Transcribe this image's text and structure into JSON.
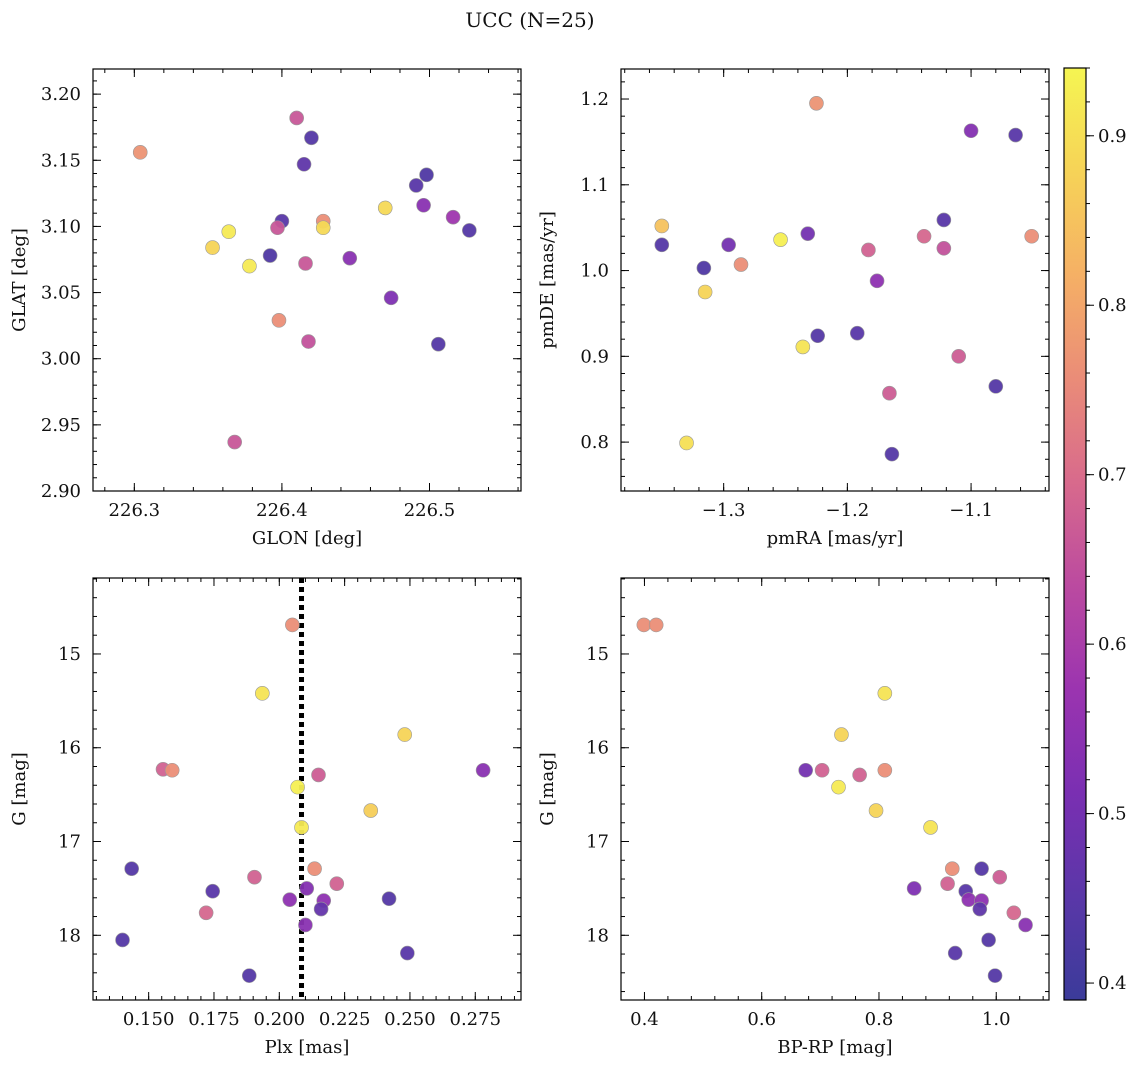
{
  "figure": {
    "title": "UCC (N=25)"
  },
  "colorbar": {
    "vmin": 0.39,
    "vmax": 0.94,
    "ticks": [
      0.4,
      0.5,
      0.6,
      0.7,
      0.8,
      0.9
    ],
    "tick_labels": [
      "0.4",
      "0.5",
      "0.6",
      "0.7",
      "0.8",
      "0.9"
    ],
    "colormap": "plasma",
    "stops": [
      "#3b3b9a",
      "#5a37a8",
      "#7a2fb2",
      "#9b34b0",
      "#bb4aa0",
      "#d86a8c",
      "#ea8c78",
      "#f5b065",
      "#f6d357",
      "#f5f552"
    ]
  },
  "chart_data": [
    {
      "type": "scatter",
      "title": "",
      "xlabel": "GLON [deg]",
      "ylabel": "GLAT [deg]",
      "xlim": [
        226.272,
        226.562
      ],
      "ylim": [
        2.9,
        3.219
      ],
      "xticks": [
        226.3,
        226.4,
        226.5
      ],
      "xtick_labels": [
        "226.3",
        "226.4",
        "226.5"
      ],
      "yticks": [
        2.9,
        2.95,
        3.0,
        3.05,
        3.1,
        3.15,
        3.2
      ],
      "ytick_labels": [
        "2.90",
        "2.95",
        "3.00",
        "3.05",
        "3.10",
        "3.15",
        "3.20"
      ],
      "invert_y": false,
      "points": [
        {
          "x": 226.304,
          "y": 3.156,
          "c": 0.77
        },
        {
          "x": 226.41,
          "y": 3.182,
          "c": 0.66
        },
        {
          "x": 226.42,
          "y": 3.167,
          "c": 0.44
        },
        {
          "x": 226.415,
          "y": 3.147,
          "c": 0.46
        },
        {
          "x": 226.498,
          "y": 3.139,
          "c": 0.43
        },
        {
          "x": 226.491,
          "y": 3.131,
          "c": 0.45
        },
        {
          "x": 226.47,
          "y": 3.114,
          "c": 0.89
        },
        {
          "x": 226.496,
          "y": 3.116,
          "c": 0.54
        },
        {
          "x": 226.516,
          "y": 3.107,
          "c": 0.58
        },
        {
          "x": 226.527,
          "y": 3.097,
          "c": 0.44
        },
        {
          "x": 226.4,
          "y": 3.104,
          "c": 0.45
        },
        {
          "x": 226.428,
          "y": 3.104,
          "c": 0.76
        },
        {
          "x": 226.428,
          "y": 3.099,
          "c": 0.89
        },
        {
          "x": 226.397,
          "y": 3.099,
          "c": 0.66
        },
        {
          "x": 226.392,
          "y": 3.078,
          "c": 0.43
        },
        {
          "x": 226.353,
          "y": 3.084,
          "c": 0.88
        },
        {
          "x": 226.364,
          "y": 3.096,
          "c": 0.92
        },
        {
          "x": 226.378,
          "y": 3.07,
          "c": 0.92
        },
        {
          "x": 226.416,
          "y": 3.072,
          "c": 0.66
        },
        {
          "x": 226.446,
          "y": 3.076,
          "c": 0.54
        },
        {
          "x": 226.474,
          "y": 3.046,
          "c": 0.52
        },
        {
          "x": 226.398,
          "y": 3.029,
          "c": 0.76
        },
        {
          "x": 226.418,
          "y": 3.013,
          "c": 0.65
        },
        {
          "x": 226.506,
          "y": 3.011,
          "c": 0.44
        },
        {
          "x": 226.368,
          "y": 2.937,
          "c": 0.66
        }
      ]
    },
    {
      "type": "scatter",
      "title": "",
      "xlabel": "pmRA [mas/yr]",
      "ylabel": "pmDE [mas/yr]",
      "xlim": [
        -1.383,
        -1.037
      ],
      "ylim": [
        0.743,
        1.235
      ],
      "xticks": [
        -1.3,
        -1.2,
        -1.1
      ],
      "xtick_labels": [
        "−1.3",
        "−1.2",
        "−1.1"
      ],
      "yticks": [
        0.8,
        0.9,
        1.0,
        1.1,
        1.2
      ],
      "ytick_labels": [
        "0.8",
        "0.9",
        "1.0",
        "1.1",
        "1.2"
      ],
      "invert_y": false,
      "points": [
        {
          "x": -1.225,
          "y": 1.195,
          "c": 0.77
        },
        {
          "x": -1.1,
          "y": 1.163,
          "c": 0.53
        },
        {
          "x": -1.064,
          "y": 1.158,
          "c": 0.45
        },
        {
          "x": -1.35,
          "y": 1.052,
          "c": 0.85
        },
        {
          "x": -1.35,
          "y": 1.03,
          "c": 0.44
        },
        {
          "x": -1.296,
          "y": 1.03,
          "c": 0.5
        },
        {
          "x": -1.232,
          "y": 1.043,
          "c": 0.5
        },
        {
          "x": -1.254,
          "y": 1.036,
          "c": 0.93
        },
        {
          "x": -1.138,
          "y": 1.04,
          "c": 0.69
        },
        {
          "x": -1.122,
          "y": 1.059,
          "c": 0.45
        },
        {
          "x": -1.122,
          "y": 1.026,
          "c": 0.65
        },
        {
          "x": -1.051,
          "y": 1.04,
          "c": 0.76
        },
        {
          "x": -1.316,
          "y": 1.003,
          "c": 0.43
        },
        {
          "x": -1.286,
          "y": 1.007,
          "c": 0.76
        },
        {
          "x": -1.183,
          "y": 1.024,
          "c": 0.68
        },
        {
          "x": -1.176,
          "y": 0.988,
          "c": 0.55
        },
        {
          "x": -1.315,
          "y": 0.975,
          "c": 0.88
        },
        {
          "x": -1.224,
          "y": 0.924,
          "c": 0.44
        },
        {
          "x": -1.192,
          "y": 0.927,
          "c": 0.45
        },
        {
          "x": -1.236,
          "y": 0.911,
          "c": 0.91
        },
        {
          "x": -1.11,
          "y": 0.9,
          "c": 0.67
        },
        {
          "x": -1.08,
          "y": 0.865,
          "c": 0.44
        },
        {
          "x": -1.166,
          "y": 0.857,
          "c": 0.67
        },
        {
          "x": -1.33,
          "y": 0.799,
          "c": 0.9
        },
        {
          "x": -1.164,
          "y": 0.786,
          "c": 0.44
        }
      ]
    },
    {
      "type": "scatter",
      "title": "",
      "xlabel": "Plx [mas]",
      "ylabel": "G [mag]",
      "xlim": [
        0.1287,
        0.2925
      ],
      "ylim": [
        14.19,
        18.69
      ],
      "xticks": [
        0.15,
        0.175,
        0.2,
        0.225,
        0.25,
        0.275
      ],
      "xtick_labels": [
        "0.150",
        "0.175",
        "0.200",
        "0.225",
        "0.250",
        "0.275"
      ],
      "yticks": [
        15,
        16,
        17,
        18
      ],
      "ytick_labels": [
        "15",
        "16",
        "17",
        "18"
      ],
      "invert_y": true,
      "vline": {
        "x": 0.2085,
        "style": "dotted",
        "color": "#000000"
      },
      "points": [
        {
          "x": 0.205,
          "y": 14.69,
          "c": 0.76
        },
        {
          "x": 0.1935,
          "y": 15.42,
          "c": 0.91
        },
        {
          "x": 0.248,
          "y": 15.86,
          "c": 0.88
        },
        {
          "x": 0.1555,
          "y": 16.23,
          "c": 0.68
        },
        {
          "x": 0.159,
          "y": 16.24,
          "c": 0.76
        },
        {
          "x": 0.278,
          "y": 16.24,
          "c": 0.54
        },
        {
          "x": 0.215,
          "y": 16.29,
          "c": 0.67
        },
        {
          "x": 0.207,
          "y": 16.42,
          "c": 0.93
        },
        {
          "x": 0.235,
          "y": 16.67,
          "c": 0.87
        },
        {
          "x": 0.2085,
          "y": 16.85,
          "c": 0.92
        },
        {
          "x": 0.1435,
          "y": 17.29,
          "c": 0.44
        },
        {
          "x": 0.2135,
          "y": 17.29,
          "c": 0.76
        },
        {
          "x": 0.1905,
          "y": 17.38,
          "c": 0.68
        },
        {
          "x": 0.222,
          "y": 17.45,
          "c": 0.68
        },
        {
          "x": 0.2105,
          "y": 17.5,
          "c": 0.53
        },
        {
          "x": 0.1745,
          "y": 17.53,
          "c": 0.45
        },
        {
          "x": 0.242,
          "y": 17.61,
          "c": 0.44
        },
        {
          "x": 0.204,
          "y": 17.62,
          "c": 0.55
        },
        {
          "x": 0.217,
          "y": 17.63,
          "c": 0.55
        },
        {
          "x": 0.216,
          "y": 17.72,
          "c": 0.47
        },
        {
          "x": 0.172,
          "y": 17.76,
          "c": 0.69
        },
        {
          "x": 0.21,
          "y": 17.89,
          "c": 0.54
        },
        {
          "x": 0.14,
          "y": 18.05,
          "c": 0.44
        },
        {
          "x": 0.249,
          "y": 18.19,
          "c": 0.45
        },
        {
          "x": 0.1885,
          "y": 18.43,
          "c": 0.44
        }
      ]
    },
    {
      "type": "scatter",
      "title": "",
      "xlabel": "BP-RP [mag]",
      "ylabel": "G [mag]",
      "xlim": [
        0.36,
        1.09
      ],
      "ylim": [
        14.19,
        18.69
      ],
      "xticks": [
        0.4,
        0.6,
        0.8,
        1.0
      ],
      "xtick_labels": [
        "0.4",
        "0.6",
        "0.8",
        "1.0"
      ],
      "yticks": [
        15,
        16,
        17,
        18
      ],
      "ytick_labels": [
        "15",
        "16",
        "17",
        "18"
      ],
      "invert_y": true,
      "points": [
        {
          "x": 0.399,
          "y": 14.69,
          "c": 0.76
        },
        {
          "x": 0.81,
          "y": 15.42,
          "c": 0.91
        },
        {
          "x": 0.736,
          "y": 15.86,
          "c": 0.88
        },
        {
          "x": 0.675,
          "y": 16.24,
          "c": 0.5
        },
        {
          "x": 0.703,
          "y": 16.24,
          "c": 0.68
        },
        {
          "x": 0.767,
          "y": 16.29,
          "c": 0.68
        },
        {
          "x": 0.81,
          "y": 16.24,
          "c": 0.76
        },
        {
          "x": 0.731,
          "y": 16.42,
          "c": 0.92
        },
        {
          "x": 0.795,
          "y": 16.67,
          "c": 0.88
        },
        {
          "x": 0.888,
          "y": 16.85,
          "c": 0.91
        },
        {
          "x": 0.925,
          "y": 17.29,
          "c": 0.76
        },
        {
          "x": 0.975,
          "y": 17.29,
          "c": 0.44
        },
        {
          "x": 1.006,
          "y": 17.38,
          "c": 0.67
        },
        {
          "x": 0.917,
          "y": 17.45,
          "c": 0.68
        },
        {
          "x": 0.86,
          "y": 17.5,
          "c": 0.52
        },
        {
          "x": 0.948,
          "y": 17.53,
          "c": 0.45
        },
        {
          "x": 0.953,
          "y": 17.62,
          "c": 0.55
        },
        {
          "x": 0.975,
          "y": 17.63,
          "c": 0.55
        },
        {
          "x": 0.972,
          "y": 17.72,
          "c": 0.46
        },
        {
          "x": 1.03,
          "y": 17.76,
          "c": 0.69
        },
        {
          "x": 1.05,
          "y": 17.89,
          "c": 0.54
        },
        {
          "x": 0.987,
          "y": 18.05,
          "c": 0.44
        },
        {
          "x": 0.93,
          "y": 18.19,
          "c": 0.45
        },
        {
          "x": 0.998,
          "y": 18.43,
          "c": 0.44
        },
        {
          "x": 0.42,
          "y": 14.69,
          "c": 0.76
        }
      ]
    }
  ]
}
